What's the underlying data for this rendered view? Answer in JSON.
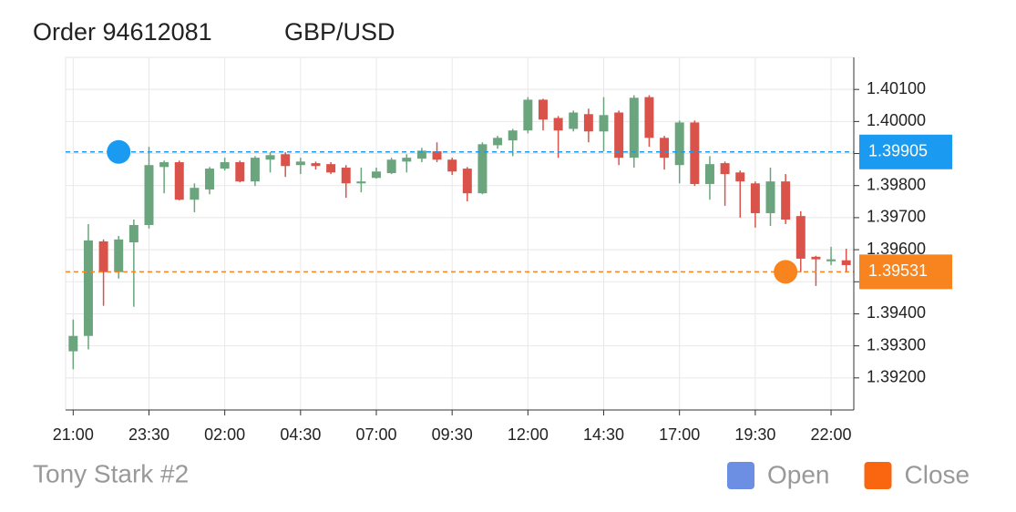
{
  "chart_data": {
    "type": "candlestick",
    "title": "Order 94612081",
    "subtitle": "GBP/USD",
    "footer": "Tony Stark #2",
    "categories": [
      "21:00",
      null,
      null,
      null,
      null,
      "23:30",
      null,
      null,
      null,
      null,
      "02:00",
      null,
      null,
      null,
      null,
      "04:30",
      null,
      null,
      null,
      null,
      "07:00",
      null,
      null,
      null,
      null,
      "09:30",
      null,
      null,
      null,
      null,
      "12:00",
      null,
      null,
      null,
      null,
      "14:30",
      null,
      null,
      null,
      null,
      "17:00",
      null,
      null,
      null,
      null,
      "19:30",
      null,
      null,
      null,
      null,
      "22:00",
      null
    ],
    "open": [
      1.39283,
      1.39331,
      1.39626,
      1.3953,
      1.39623,
      1.39677,
      1.39858,
      1.39873,
      1.39756,
      1.39788,
      1.39853,
      1.39873,
      1.39813,
      1.39881,
      1.39898,
      1.39864,
      1.3987,
      1.39867,
      1.39856,
      1.39807,
      1.39824,
      1.39839,
      1.39875,
      1.39884,
      1.39907,
      1.39881,
      1.39853,
      1.39776,
      1.39926,
      1.39941,
      1.39972,
      1.40068,
      1.40011,
      1.39977,
      1.40023,
      1.39969,
      1.40028,
      1.39887,
      1.40076,
      1.39949,
      1.39864,
      1.39997,
      1.39805,
      1.3987,
      1.39841,
      1.39807,
      1.39714,
      1.39813,
      1.39705,
      1.39578,
      1.39564,
      1.39567
    ],
    "high": [
      1.39382,
      1.3968,
      1.39632,
      1.39643,
      1.39694,
      1.39921,
      1.39878,
      1.39878,
      1.39807,
      1.39858,
      1.39887,
      1.39878,
      1.39892,
      1.39904,
      1.39904,
      1.39887,
      1.39875,
      1.39873,
      1.39864,
      1.39856,
      1.39856,
      1.39887,
      1.39898,
      1.39918,
      1.39935,
      1.39887,
      1.39858,
      1.39935,
      1.39955,
      1.39977,
      1.40076,
      1.40071,
      1.40017,
      1.40034,
      1.4004,
      1.40076,
      1.40034,
      1.40082,
      1.40082,
      1.39955,
      1.40003,
      1.40003,
      1.39892,
      1.39875,
      1.39847,
      1.39813,
      1.39856,
      1.39836,
      1.3972,
      1.39581,
      1.39609,
      1.39603
    ],
    "low": [
      1.39227,
      1.39289,
      1.39425,
      1.3951,
      1.39422,
      1.39666,
      1.39776,
      1.39754,
      1.39717,
      1.39773,
      1.39847,
      1.3981,
      1.39799,
      1.39841,
      1.39827,
      1.39836,
      1.3985,
      1.39836,
      1.39762,
      1.39779,
      1.39822,
      1.39836,
      1.39841,
      1.39873,
      1.39873,
      1.39833,
      1.39751,
      1.39773,
      1.39915,
      1.39892,
      1.39963,
      1.39972,
      1.39887,
      1.39969,
      1.39935,
      1.39907,
      1.39864,
      1.39856,
      1.39921,
      1.3985,
      1.39807,
      1.39799,
      1.39756,
      1.39737,
      1.397,
      1.39669,
      1.39674,
      1.3968,
      1.3953,
      1.39487,
      1.39552,
      1.3953
    ],
    "close": [
      1.39331,
      1.39629,
      1.3953,
      1.39632,
      1.39677,
      1.39864,
      1.39873,
      1.39756,
      1.39793,
      1.39853,
      1.39873,
      1.39813,
      1.39887,
      1.39895,
      1.39861,
      1.39875,
      1.39861,
      1.39841,
      1.39807,
      1.39813,
      1.39844,
      1.39881,
      1.39887,
      1.39909,
      1.39881,
      1.39844,
      1.39776,
      1.39929,
      1.39949,
      1.39972,
      1.40068,
      1.40006,
      1.39972,
      1.40028,
      1.39969,
      1.4002,
      1.39887,
      1.40074,
      1.39949,
      1.39887,
      1.39997,
      1.39805,
      1.39867,
      1.39836,
      1.39813,
      1.39714,
      1.39813,
      1.39694,
      1.39572,
      1.3957,
      1.3957,
      1.39552
    ],
    "up_color": "#6aa57d",
    "down_color": "#d9534a",
    "ylim": [
      1.391,
      1.402
    ],
    "yticks": [
      {
        "value": 1.392,
        "label": "1.39200"
      },
      {
        "value": 1.393,
        "label": "1.39300"
      },
      {
        "value": 1.394,
        "label": "1.39400"
      },
      {
        "value": 1.395,
        "label": "1.39500"
      },
      {
        "value": 1.396,
        "label": "1.39600"
      },
      {
        "value": 1.397,
        "label": "1.39700"
      },
      {
        "value": 1.398,
        "label": "1.39800"
      },
      {
        "value": 1.399,
        "label": "1.39900"
      },
      {
        "value": 1.4,
        "label": "1.40000"
      },
      {
        "value": 1.401,
        "label": "1.40100"
      }
    ],
    "grid": true,
    "markers": [
      {
        "name": "Open",
        "color": "#6d8fe3",
        "line_color": "#1a9af0",
        "value": 1.39905,
        "index": 3
      },
      {
        "name": "Close",
        "color": "#f9660f",
        "line_color": "#f7841f",
        "value": 1.39531,
        "index": 47
      }
    ]
  }
}
